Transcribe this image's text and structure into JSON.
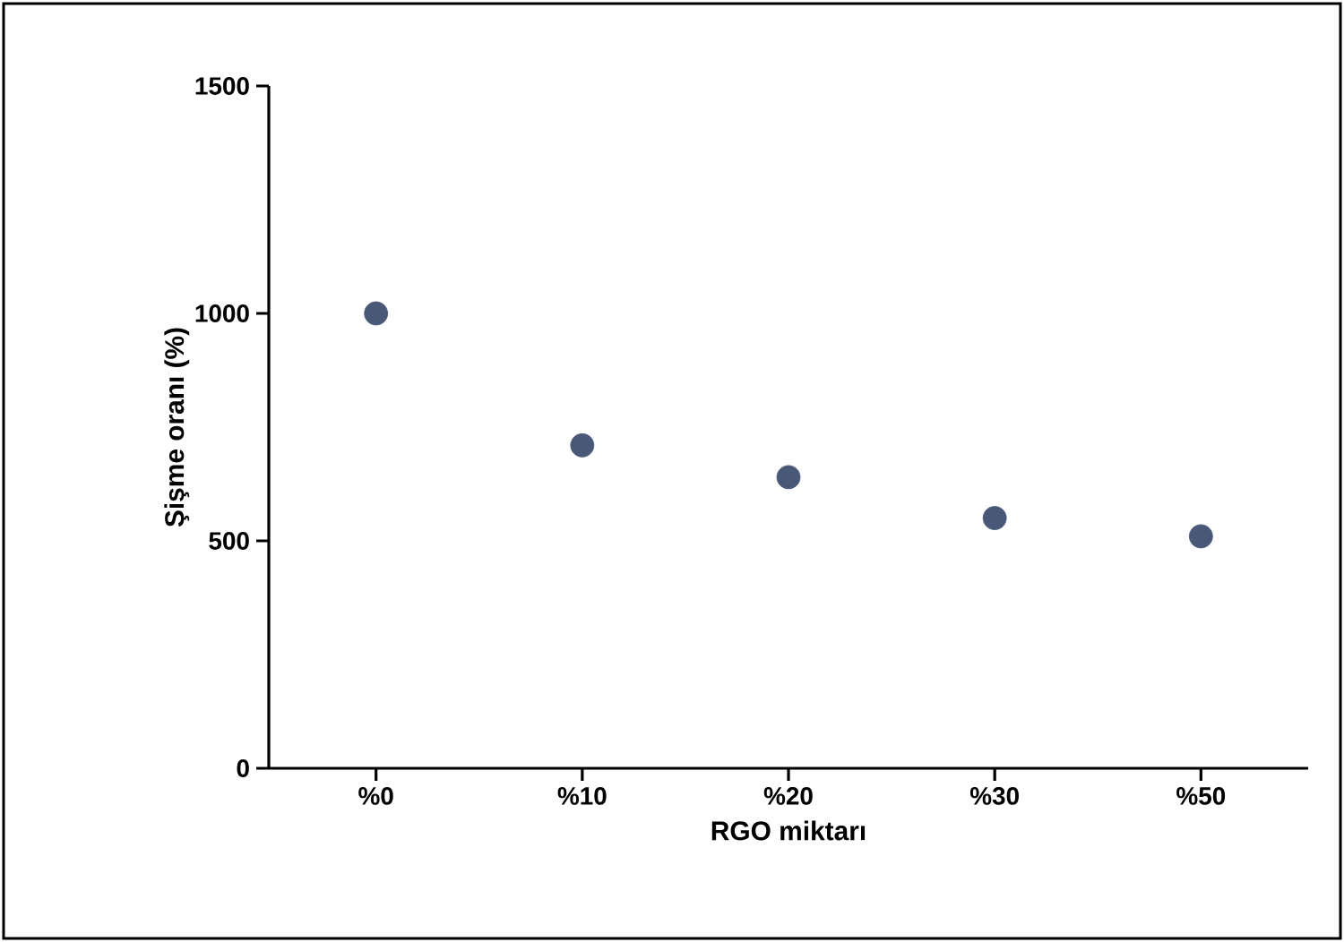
{
  "chart_data": {
    "type": "scatter",
    "xlabel": "RGO miktarı",
    "ylabel": "Şişme oranı (%)",
    "categories": [
      "%0",
      "%10",
      "%20",
      "%30",
      "%50"
    ],
    "values": [
      1000,
      710,
      640,
      550,
      510
    ],
    "color": "#4a5878",
    "ylim": [
      0,
      1500
    ],
    "yticks": [
      0,
      500,
      1000,
      1500
    ]
  }
}
